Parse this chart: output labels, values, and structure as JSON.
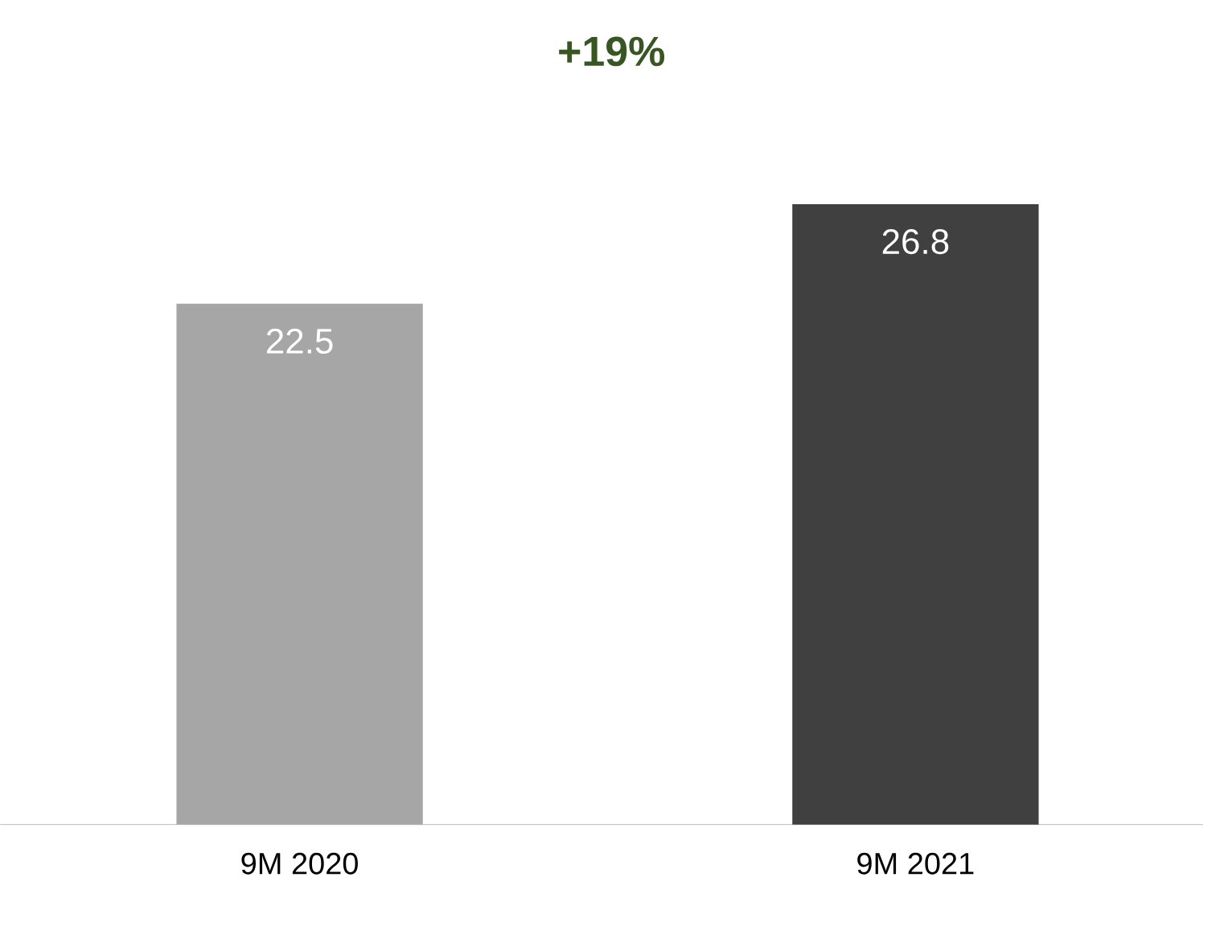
{
  "chart_data": {
    "type": "bar",
    "title": "+19%",
    "categories": [
      "9M 2020",
      "9M 2021"
    ],
    "values": [
      22.5,
      26.8
    ],
    "colors": [
      "#a6a6a6",
      "#404040"
    ],
    "value_labels": [
      "22.5",
      "26.8"
    ]
  }
}
